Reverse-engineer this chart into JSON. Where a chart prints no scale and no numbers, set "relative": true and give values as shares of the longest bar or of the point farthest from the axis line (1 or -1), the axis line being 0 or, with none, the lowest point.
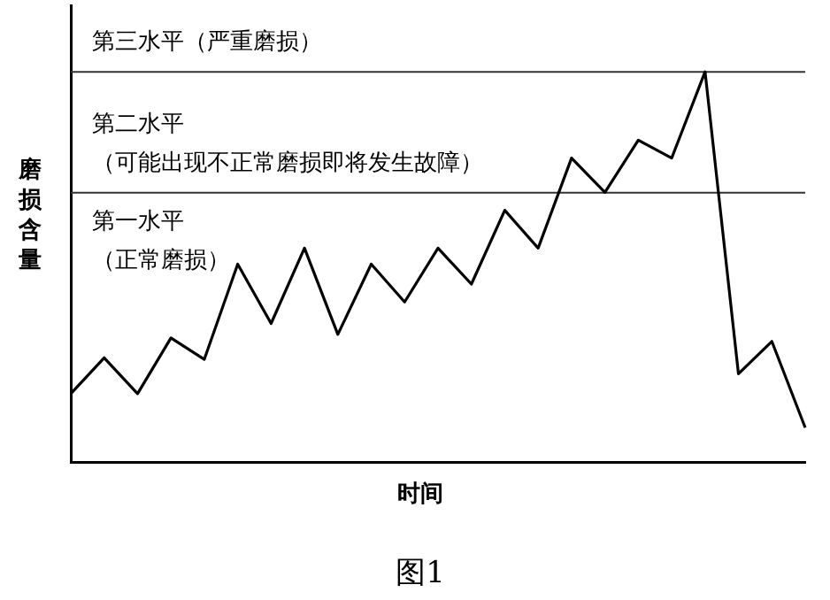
{
  "chart_data": {
    "type": "line",
    "relative": true,
    "xlabel": "时间",
    "ylabel": "磨损含量",
    "categories": [
      null,
      null,
      null,
      null,
      null,
      null,
      null,
      null,
      null,
      null,
      null,
      null,
      null,
      null,
      null,
      null,
      null,
      null,
      null,
      null,
      null,
      null,
      null
    ],
    "series": [
      {
        "color": "#000000",
        "values": [
          0.175,
          0.267,
          0.175,
          0.318,
          0.263,
          0.507,
          0.355,
          0.548,
          0.327,
          0.507,
          0.41,
          0.548,
          0.456,
          0.645,
          0.548,
          0.779,
          0.691,
          0.825,
          0.779,
          1,
          0.226,
          0.309,
          0.088
        ]
      }
    ],
    "ref_lines": [
      {
        "axis": "y",
        "value": 1,
        "label": "第三水平（严重磨损）"
      },
      {
        "axis": "y",
        "value": 0.69,
        "label": "第二水平（可能出现不正常磨损即将发生故障）"
      }
    ],
    "annotations": [
      "第一水平（正常磨损）",
      "图1"
    ],
    "marker": "none",
    "grid": false,
    "legend": false
  }
}
